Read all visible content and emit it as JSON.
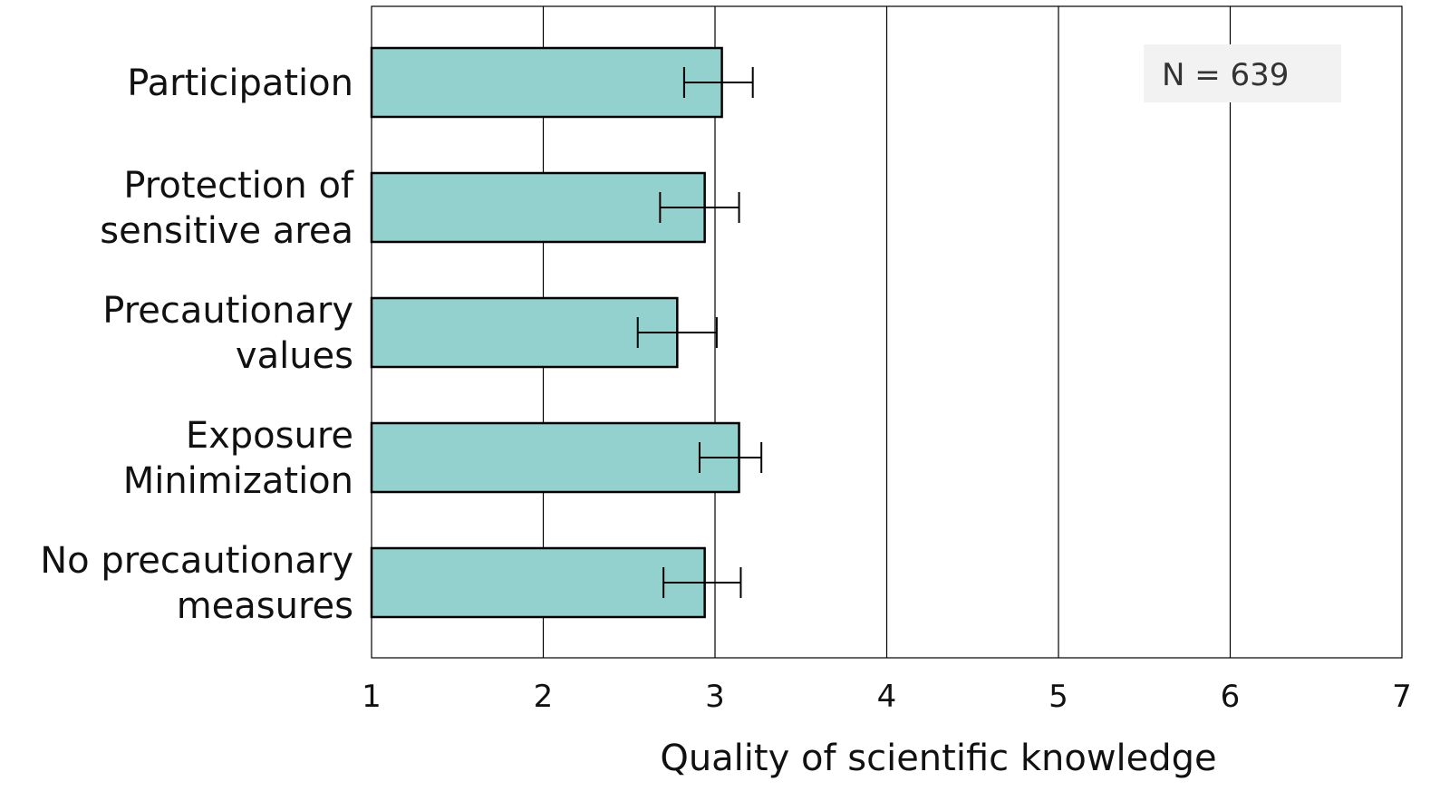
{
  "chart_data": {
    "type": "bar",
    "orientation": "horizontal",
    "title": "",
    "xlabel": "Quality of scientific knowledge",
    "ylabel": "",
    "xlim": [
      1,
      7
    ],
    "x_ticks": [
      1,
      2,
      3,
      4,
      5,
      6,
      7
    ],
    "grid": "vertical",
    "categories": [
      [
        "Participation"
      ],
      [
        "Protection of",
        "sensitive area"
      ],
      [
        "Precautionary",
        "values"
      ],
      [
        "Exposure",
        "Minimization"
      ],
      [
        "No precautionary",
        "measures"
      ]
    ],
    "values": [
      3.04,
      2.94,
      2.78,
      3.14,
      2.94
    ],
    "error_low": [
      2.82,
      2.68,
      2.55,
      2.91,
      2.7
    ],
    "error_high": [
      3.22,
      3.14,
      3.01,
      3.27,
      3.15
    ],
    "annotation": "N = 639",
    "annotation_position": "top-right",
    "colors": {
      "bar_fill": "#92D1CE",
      "bar_stroke": "#000000",
      "grid": "#000000",
      "annotation_bg": "#F2F2F2"
    }
  }
}
